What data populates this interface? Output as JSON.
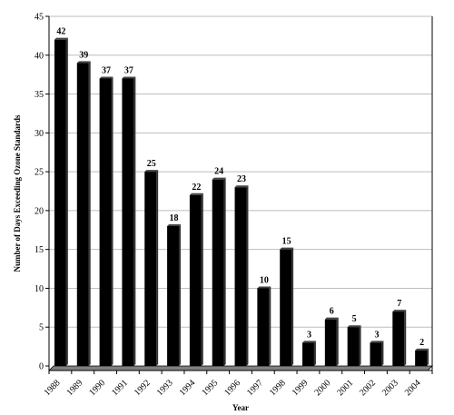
{
  "chart_data": {
    "type": "bar",
    "title": "",
    "xlabel": "Year",
    "ylabel": "Number of Days Exceeding Ozone Standards",
    "categories": [
      "1988",
      "1989",
      "1990",
      "1991",
      "1992",
      "1993",
      "1994",
      "1995",
      "1996",
      "1997",
      "1998",
      "1999",
      "2000",
      "2001",
      "2002",
      "2003",
      "2004"
    ],
    "values": [
      42,
      39,
      37,
      37,
      25,
      18,
      22,
      24,
      23,
      10,
      15,
      3,
      6,
      5,
      3,
      7,
      2
    ],
    "ylim": [
      0,
      45
    ],
    "yticks": [
      0,
      5,
      10,
      15,
      20,
      25,
      30,
      35,
      40,
      45
    ],
    "grid": true,
    "data_labels": true,
    "bar_color": "#000000",
    "floor_color": "#808080",
    "grid_color": "#bdbdbd"
  }
}
